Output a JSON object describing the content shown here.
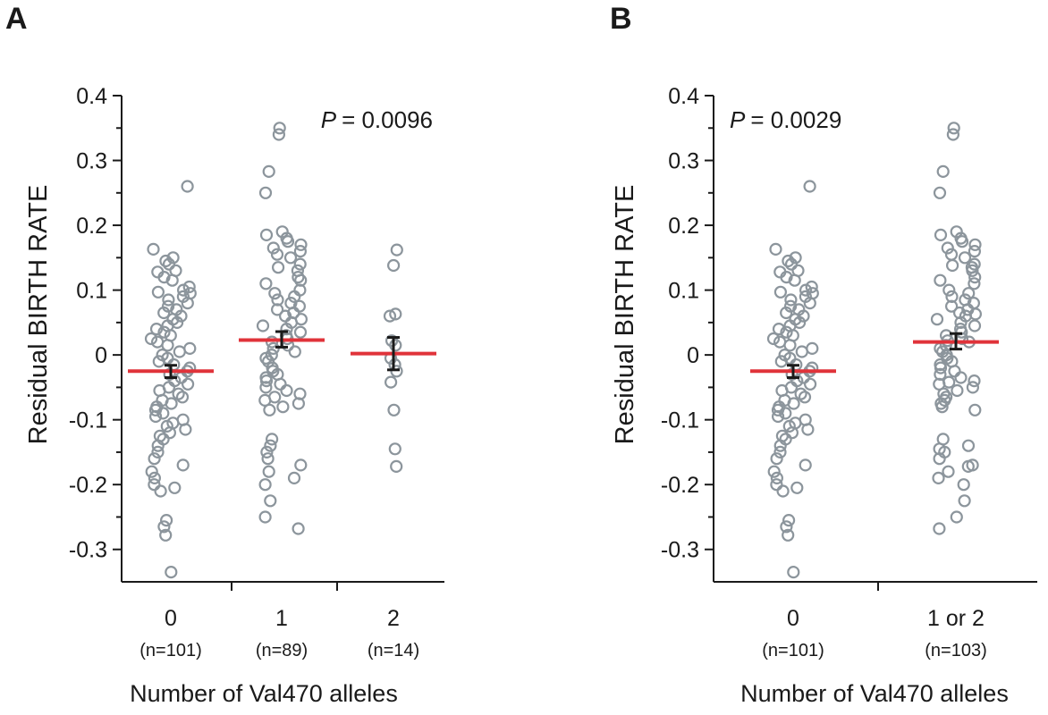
{
  "chart_data": [
    {
      "panel": "A",
      "type": "scatter",
      "title": "",
      "ylabel": "Residual BIRTH RATE",
      "xlabel": "Number of Val470 alleles",
      "ylim": [
        -0.35,
        0.4
      ],
      "yticks": [
        "0.4",
        "0.3",
        "0.2",
        "0.1",
        "0",
        "-0.1",
        "-0.2",
        "-0.3"
      ],
      "annotation": {
        "p_label": "P",
        "p_value": "= 0.0096"
      },
      "categories": [
        {
          "label": "0",
          "n": "(n=101)",
          "mean": -0.025,
          "sem_low": -0.035,
          "sem_high": -0.016,
          "points": [
            0.26,
            0.163,
            0.15,
            0.145,
            0.14,
            0.13,
            0.128,
            0.12,
            0.115,
            0.105,
            0.1,
            0.097,
            0.095,
            0.09,
            0.085,
            0.08,
            0.075,
            0.07,
            0.065,
            0.06,
            0.055,
            0.05,
            0.045,
            0.04,
            0.035,
            0.03,
            0.025,
            0.02,
            0.015,
            0.01,
            0.005,
            0.0,
            -0.005,
            -0.01,
            -0.015,
            -0.02,
            -0.025,
            -0.03,
            -0.035,
            -0.04,
            -0.045,
            -0.05,
            -0.055,
            -0.06,
            -0.065,
            -0.07,
            -0.075,
            -0.08,
            -0.085,
            -0.09,
            -0.095,
            -0.1,
            -0.105,
            -0.11,
            -0.115,
            -0.12,
            -0.125,
            -0.13,
            -0.14,
            -0.15,
            -0.16,
            -0.17,
            -0.18,
            -0.19,
            -0.2,
            -0.205,
            -0.21,
            -0.255,
            -0.265,
            -0.278,
            -0.335
          ]
        },
        {
          "label": "1",
          "n": "(n=89)",
          "mean": 0.023,
          "sem_low": 0.012,
          "sem_high": 0.036,
          "points": [
            0.35,
            0.34,
            0.283,
            0.25,
            0.19,
            0.185,
            0.18,
            0.175,
            0.17,
            0.165,
            0.16,
            0.155,
            0.15,
            0.14,
            0.135,
            0.13,
            0.12,
            0.115,
            0.11,
            0.1,
            0.095,
            0.09,
            0.085,
            0.08,
            0.075,
            0.07,
            0.065,
            0.06,
            0.055,
            0.05,
            0.045,
            0.04,
            0.035,
            0.03,
            0.025,
            0.02,
            0.015,
            0.01,
            0.005,
            0.0,
            -0.005,
            -0.01,
            -0.02,
            -0.025,
            -0.03,
            -0.035,
            -0.04,
            -0.045,
            -0.05,
            -0.055,
            -0.06,
            -0.065,
            -0.07,
            -0.075,
            -0.08,
            -0.085,
            -0.13,
            -0.14,
            -0.15,
            -0.16,
            -0.17,
            -0.18,
            -0.19,
            -0.2,
            -0.225,
            -0.25,
            -0.268
          ]
        },
        {
          "label": "2",
          "n": "(n=14)",
          "mean": 0.002,
          "sem_low": -0.023,
          "sem_high": 0.027,
          "points": [
            0.162,
            0.138,
            0.063,
            0.06,
            0.022,
            0.015,
            -0.005,
            -0.015,
            -0.025,
            -0.042,
            -0.085,
            -0.145,
            -0.172
          ]
        }
      ]
    },
    {
      "panel": "B",
      "type": "scatter",
      "title": "",
      "ylabel": "Residual BIRTH RATE",
      "xlabel": "Number of Val470 alleles",
      "ylim": [
        -0.35,
        0.4
      ],
      "yticks": [
        "0.4",
        "0.3",
        "0.2",
        "0.1",
        "0",
        "-0.1",
        "-0.2",
        "-0.3"
      ],
      "annotation": {
        "p_label": "P",
        "p_value": "= 0.0029"
      },
      "categories": [
        {
          "label": "0",
          "n": "(n=101)",
          "mean": -0.025,
          "sem_low": -0.035,
          "sem_high": -0.016,
          "points": [
            0.26,
            0.163,
            0.15,
            0.145,
            0.14,
            0.13,
            0.128,
            0.12,
            0.115,
            0.105,
            0.1,
            0.097,
            0.095,
            0.09,
            0.085,
            0.08,
            0.075,
            0.07,
            0.065,
            0.06,
            0.055,
            0.05,
            0.045,
            0.04,
            0.035,
            0.03,
            0.025,
            0.02,
            0.015,
            0.01,
            0.005,
            0.0,
            -0.005,
            -0.01,
            -0.015,
            -0.02,
            -0.025,
            -0.03,
            -0.035,
            -0.04,
            -0.045,
            -0.05,
            -0.055,
            -0.06,
            -0.065,
            -0.07,
            -0.075,
            -0.08,
            -0.085,
            -0.09,
            -0.095,
            -0.1,
            -0.105,
            -0.11,
            -0.115,
            -0.12,
            -0.125,
            -0.13,
            -0.14,
            -0.15,
            -0.16,
            -0.17,
            -0.18,
            -0.19,
            -0.2,
            -0.205,
            -0.21,
            -0.255,
            -0.265,
            -0.278,
            -0.335
          ]
        },
        {
          "label": "1 or 2",
          "n": "(n=103)",
          "mean": 0.02,
          "sem_low": 0.009,
          "sem_high": 0.033,
          "points": [
            0.35,
            0.34,
            0.283,
            0.25,
            0.19,
            0.185,
            0.18,
            0.175,
            0.17,
            0.165,
            0.16,
            0.155,
            0.15,
            0.14,
            0.138,
            0.135,
            0.13,
            0.12,
            0.115,
            0.11,
            0.1,
            0.095,
            0.09,
            0.085,
            0.08,
            0.075,
            0.07,
            0.065,
            0.063,
            0.06,
            0.055,
            0.05,
            0.045,
            0.04,
            0.035,
            0.03,
            0.025,
            0.022,
            0.02,
            0.015,
            0.01,
            0.005,
            0.0,
            -0.005,
            -0.01,
            -0.015,
            -0.02,
            -0.025,
            -0.03,
            -0.035,
            -0.04,
            -0.042,
            -0.045,
            -0.05,
            -0.055,
            -0.06,
            -0.065,
            -0.07,
            -0.075,
            -0.08,
            -0.085,
            -0.13,
            -0.14,
            -0.145,
            -0.15,
            -0.16,
            -0.17,
            -0.172,
            -0.18,
            -0.19,
            -0.2,
            -0.225,
            -0.25,
            -0.268
          ]
        }
      ]
    }
  ],
  "colors": {
    "points": "#8c959c",
    "mean": "#e0333a",
    "errorbar": "#1a1a1a",
    "axis": "#1a1a1a"
  }
}
